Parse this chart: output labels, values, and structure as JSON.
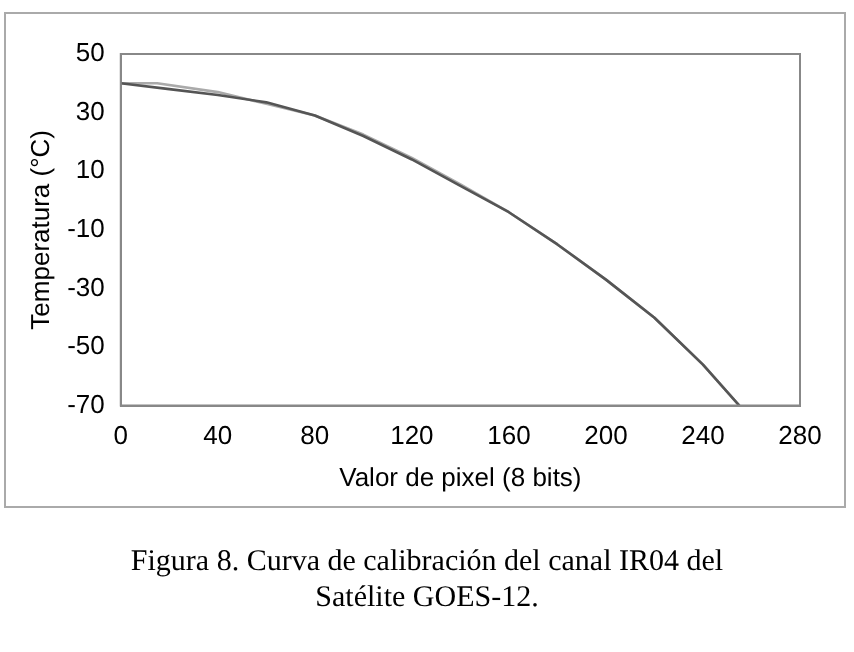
{
  "chart_data": {
    "type": "line",
    "xlabel": "Valor de pixel (8 bits)",
    "ylabel": "Temperatura (°C)",
    "xlim": [
      0,
      280
    ],
    "xticks": [
      0,
      40,
      80,
      120,
      160,
      200,
      240,
      280
    ],
    "ylim": [
      -70,
      50
    ],
    "yticks": [
      -70,
      -50,
      -30,
      -10,
      10,
      30,
      50
    ],
    "grid": false,
    "legend": false,
    "marker": "none",
    "line_style": "solid",
    "series": [
      {
        "color": "#555555",
        "x": [
          0,
          20,
          40,
          60,
          80,
          100,
          120,
          140,
          160,
          180,
          200,
          220,
          240,
          255
        ],
        "values": [
          40,
          38,
          36,
          33.5,
          29,
          22,
          14,
          5,
          -4,
          -15,
          -27,
          -40,
          -56,
          -70
        ]
      },
      {
        "color": "#aaaaaa",
        "x": [
          0,
          15,
          40,
          60,
          80,
          100,
          120,
          140,
          160,
          180,
          200,
          220,
          240,
          255
        ],
        "values": [
          40,
          40,
          37,
          33,
          29,
          22.5,
          14.5,
          5.5,
          -4,
          -15,
          -27,
          -40,
          -56,
          -70
        ]
      }
    ],
    "annotations": [
      "Figura 8. Curva de calibración del canal IR04 del Satélite GOES-12."
    ]
  }
}
